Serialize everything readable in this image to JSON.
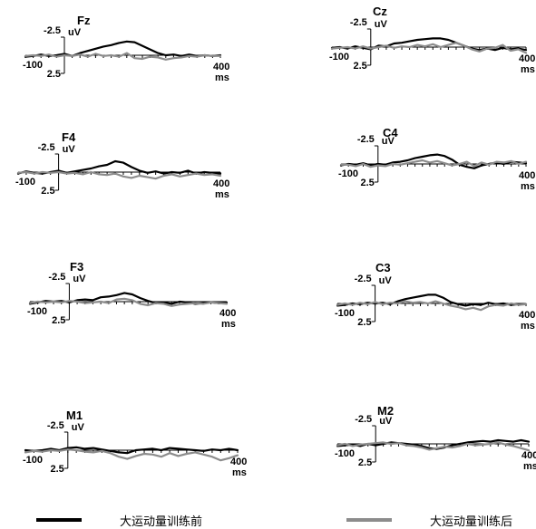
{
  "chart_data": {
    "type": "line",
    "legend_placement": "bottom",
    "series_styles": [
      {
        "color": "#000000"
      },
      {
        "color": "#8c8c8c"
      }
    ],
    "axis_labels": {
      "y_top": "-2.5",
      "y_bottom": "2.5",
      "y_unit": "uV",
      "x_start": "-100",
      "x_end": "400",
      "x_unit": "ms"
    },
    "xlim": [
      -100,
      400
    ],
    "ylim": [
      2.5,
      -2.5
    ],
    "y_inverted": true,
    "x": [
      -100,
      -80,
      -60,
      -40,
      -20,
      0,
      20,
      40,
      60,
      80,
      100,
      120,
      140,
      160,
      180,
      200,
      220,
      240,
      260,
      280,
      300,
      320,
      340,
      360,
      380,
      400
    ],
    "panels": [
      {
        "channel": "Fz",
        "series": [
          {
            "values": [
              0.2,
              0.1,
              -0.1,
              0.1,
              0.0,
              -0.2,
              0.1,
              -0.3,
              -0.6,
              -0.9,
              -1.2,
              -1.4,
              -1.7,
              -1.9,
              -1.8,
              -1.3,
              -0.8,
              -0.3,
              0.0,
              -0.1,
              0.1,
              -0.1,
              0.1,
              0.0,
              0.1,
              0.0
            ]
          },
          {
            "values": [
              0.1,
              0.0,
              0.1,
              -0.1,
              0.2,
              0.0,
              0.1,
              -0.1,
              0.2,
              -0.2,
              0.1,
              0.0,
              0.2,
              -0.3,
              0.4,
              0.5,
              0.2,
              0.3,
              0.6,
              0.4,
              0.3,
              0.1,
              0.2,
              0.0,
              0.1,
              0.1
            ]
          }
        ]
      },
      {
        "channel": "Cz",
        "series": [
          {
            "values": [
              0.1,
              0.0,
              0.2,
              -0.1,
              0.1,
              0.3,
              -0.2,
              -0.1,
              -0.5,
              -0.6,
              -0.8,
              -1.0,
              -1.1,
              -1.2,
              -1.2,
              -1.0,
              -0.6,
              -0.2,
              0.2,
              0.4,
              0.2,
              0.4,
              0.1,
              0.3,
              0.2,
              0.4
            ]
          },
          {
            "values": [
              0.2,
              0.1,
              0.0,
              0.2,
              -0.1,
              0.2,
              0.0,
              -0.2,
              0.1,
              -0.1,
              0.0,
              -0.3,
              -0.1,
              -0.4,
              0.0,
              -0.3,
              -0.6,
              -0.2,
              0.3,
              0.6,
              0.2,
              0.1,
              -0.3,
              0.5,
              0.3,
              0.8
            ]
          }
        ]
      },
      {
        "channel": "F4",
        "series": [
          {
            "values": [
              0.2,
              -0.1,
              0.1,
              0.2,
              0.0,
              -0.2,
              0.1,
              -0.1,
              -0.3,
              -0.5,
              -0.8,
              -1.0,
              -1.5,
              -1.3,
              -0.7,
              -0.2,
              0.1,
              -0.1,
              0.2,
              0.0,
              0.1,
              -0.2,
              0.2,
              0.0,
              0.1,
              0.2
            ]
          },
          {
            "values": [
              0.1,
              0.0,
              0.2,
              0.0,
              0.1,
              0.0,
              0.2,
              0.1,
              0.3,
              0.0,
              0.3,
              0.4,
              0.2,
              0.6,
              0.8,
              0.5,
              0.7,
              0.9,
              0.5,
              0.3,
              0.6,
              0.4,
              0.2,
              0.4,
              0.3,
              0.5
            ]
          }
        ]
      },
      {
        "channel": "C4",
        "series": [
          {
            "values": [
              0.2,
              0.0,
              0.1,
              -0.1,
              0.2,
              0.0,
              0.1,
              -0.2,
              -0.3,
              -0.5,
              -0.8,
              -1.0,
              -1.2,
              -1.3,
              -1.1,
              -0.6,
              0.1,
              0.4,
              0.6,
              0.2,
              0.0,
              -0.2,
              0.0,
              -0.3,
              -0.2,
              -0.1
            ]
          },
          {
            "values": [
              0.1,
              0.1,
              0.3,
              0.0,
              0.4,
              0.2,
              0.3,
              0.0,
              0.1,
              -0.1,
              -0.3,
              -0.5,
              -0.2,
              -0.4,
              -0.1,
              0.2,
              0.0,
              -0.3,
              0.3,
              -0.2,
              0.1,
              -0.3,
              -0.2,
              -0.4,
              0.0,
              -0.3
            ]
          }
        ]
      },
      {
        "channel": "F3",
        "series": [
          {
            "values": [
              0.3,
              0.1,
              -0.1,
              0.0,
              -0.1,
              0.1,
              -0.2,
              -0.3,
              -0.2,
              -0.6,
              -0.7,
              -0.9,
              -1.2,
              -1.0,
              -0.5,
              -0.1,
              0.2,
              0.1,
              0.3,
              0.0,
              0.1,
              0.3,
              0.2,
              0.1,
              0.2,
              0.1
            ]
          },
          {
            "values": [
              0.2,
              0.0,
              0.1,
              0.0,
              0.1,
              -0.1,
              0.0,
              0.2,
              0.1,
              0.0,
              0.2,
              -0.3,
              -0.4,
              -0.2,
              0.3,
              0.5,
              0.2,
              0.3,
              0.6,
              0.4,
              0.3,
              0.2,
              0.3,
              0.1,
              0.2,
              0.3
            ]
          }
        ]
      },
      {
        "channel": "C3",
        "series": [
          {
            "values": [
              0.3,
              0.2,
              0.0,
              0.1,
              -0.1,
              0.0,
              -0.1,
              0.1,
              -0.3,
              -0.6,
              -0.8,
              -1.0,
              -1.2,
              -1.2,
              -0.8,
              -0.2,
              0.1,
              0.3,
              0.1,
              0.2,
              -0.1,
              0.1,
              0.0,
              0.2,
              0.1,
              0.1
            ]
          },
          {
            "values": [
              0.2,
              0.0,
              0.2,
              -0.1,
              0.1,
              -0.2,
              0.1,
              -0.1,
              0.0,
              -0.3,
              -0.1,
              -0.2,
              0.0,
              -0.3,
              0.0,
              0.3,
              0.5,
              0.8,
              0.6,
              0.9,
              0.4,
              0.2,
              0.3,
              0.0,
              0.2,
              0.1
            ]
          }
        ]
      },
      {
        "channel": "M1",
        "series": [
          {
            "values": [
              0.0,
              0.1,
              0.0,
              -0.2,
              0.0,
              -0.3,
              -0.4,
              -0.2,
              -0.3,
              -0.1,
              0.1,
              0.3,
              0.4,
              0.0,
              -0.1,
              -0.2,
              0.0,
              -0.3,
              -0.2,
              -0.1,
              0.0,
              0.1,
              -0.1,
              0.0,
              -0.2,
              0.0
            ]
          },
          {
            "values": [
              0.3,
              0.1,
              0.2,
              0.0,
              0.1,
              -0.1,
              0.0,
              0.2,
              0.3,
              0.1,
              0.4,
              0.9,
              1.2,
              0.8,
              0.5,
              0.6,
              0.9,
              0.4,
              0.8,
              0.5,
              0.3,
              0.6,
              0.9,
              1.4,
              1.1,
              0.7
            ]
          }
        ]
      },
      {
        "channel": "M2",
        "series": [
          {
            "values": [
              0.3,
              0.2,
              0.1,
              0.3,
              0.0,
              0.2,
              0.0,
              -0.2,
              -0.1,
              0.0,
              0.1,
              0.3,
              0.6,
              0.7,
              0.5,
              0.2,
              0.0,
              -0.2,
              -0.3,
              -0.4,
              -0.3,
              -0.5,
              -0.4,
              -0.3,
              -0.5,
              -0.3
            ]
          },
          {
            "values": [
              0.2,
              0.0,
              0.3,
              0.1,
              0.0,
              -0.1,
              -0.2,
              0.0,
              -0.1,
              0.2,
              0.3,
              0.5,
              0.8,
              0.6,
              0.4,
              0.5,
              0.3,
              0.0,
              0.2,
              0.1,
              0.0,
              -0.2,
              0.1,
              0.3,
              0.6,
              0.9
            ]
          }
        ]
      }
    ]
  },
  "legend": {
    "items": [
      {
        "label": "大运动量训练前",
        "color": "#000000"
      },
      {
        "label": "大运动量训练后",
        "color": "#8c8c8c"
      }
    ]
  }
}
